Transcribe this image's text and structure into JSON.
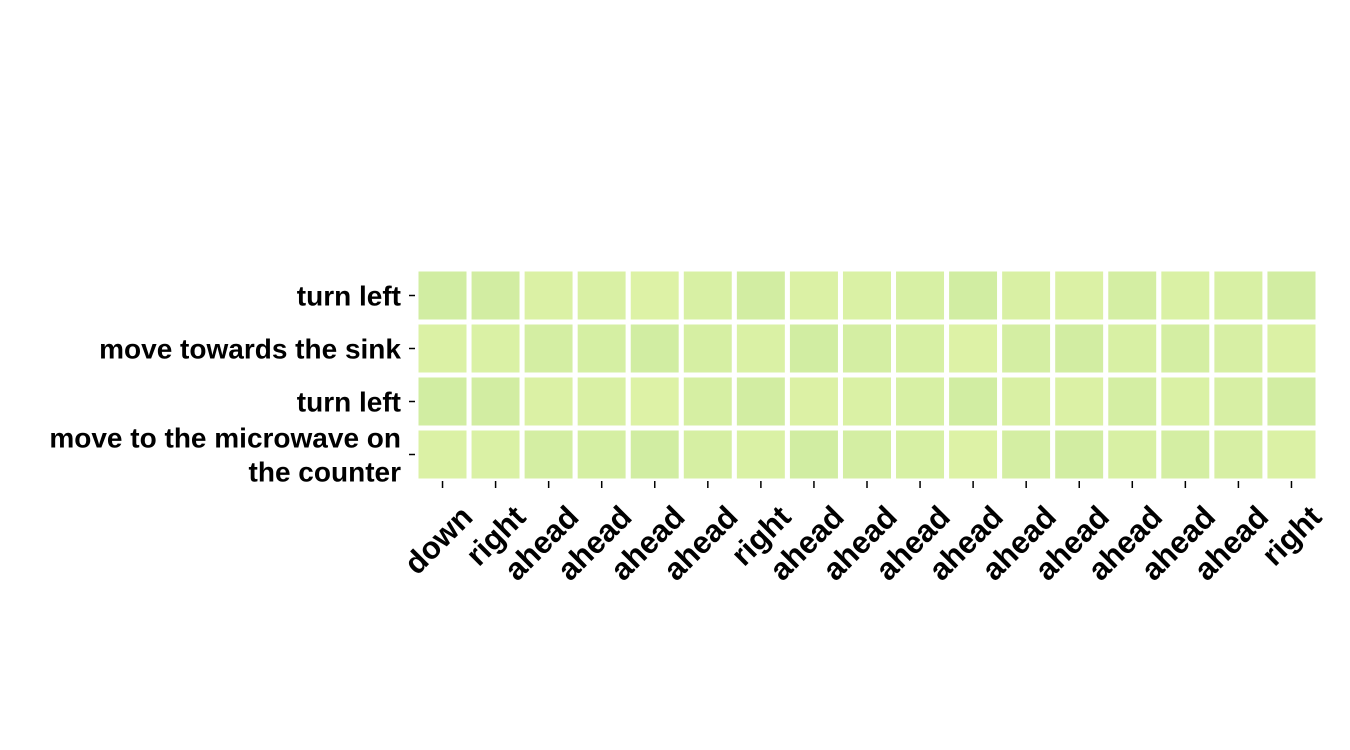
{
  "chart_data": {
    "type": "heatmap",
    "title": "",
    "xlabel": "",
    "ylabel": "",
    "x_categories": [
      "down",
      "right",
      "ahead",
      "ahead",
      "ahead",
      "ahead",
      "right",
      "ahead",
      "ahead",
      "ahead",
      "ahead",
      "ahead",
      "ahead",
      "ahead",
      "ahead",
      "ahead",
      "right"
    ],
    "y_categories": [
      [
        "turn left"
      ],
      [
        "move towards the sink"
      ],
      [
        "turn left"
      ],
      [
        "move to the microwave on",
        "the counter"
      ]
    ],
    "values": [
      [
        0.62,
        0.6,
        0.3,
        0.38,
        0.25,
        0.4,
        0.6,
        0.3,
        0.32,
        0.42,
        0.65,
        0.38,
        0.3,
        0.55,
        0.32,
        0.4,
        0.6
      ],
      [
        0.3,
        0.32,
        0.55,
        0.5,
        0.65,
        0.48,
        0.32,
        0.62,
        0.55,
        0.42,
        0.22,
        0.55,
        0.6,
        0.4,
        0.55,
        0.45,
        0.3
      ],
      [
        0.62,
        0.6,
        0.3,
        0.38,
        0.25,
        0.48,
        0.6,
        0.28,
        0.32,
        0.42,
        0.65,
        0.38,
        0.3,
        0.55,
        0.32,
        0.45,
        0.6
      ],
      [
        0.3,
        0.32,
        0.55,
        0.5,
        0.65,
        0.48,
        0.32,
        0.62,
        0.55,
        0.42,
        0.22,
        0.55,
        0.6,
        0.4,
        0.55,
        0.45,
        0.3
      ]
    ],
    "vmin": 0,
    "vmax": 1,
    "colormap": "YlGn",
    "color_low": "#e4f5a8",
    "color_high": "#c6e89e",
    "cell_border_color": "#ffffff",
    "colorbar": false,
    "grid": false,
    "legend": "none"
  }
}
